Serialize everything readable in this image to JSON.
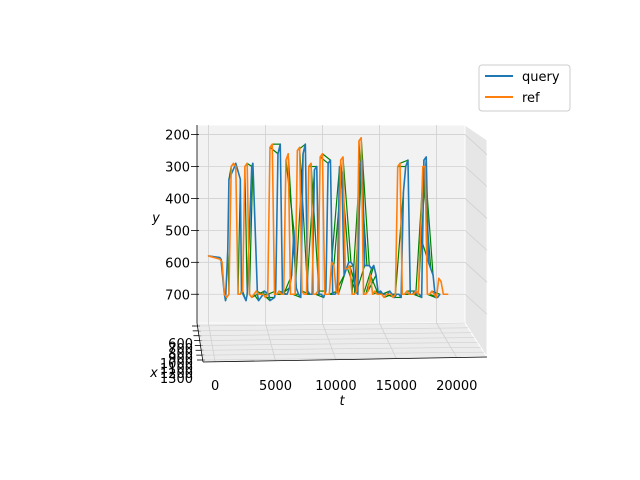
{
  "chart_data": {
    "type": "line",
    "projection": "3d",
    "title": "",
    "xlabel": "t",
    "ylabel": "y",
    "zlabel": "x",
    "x_ticks": [
      "0",
      "5000",
      "10000",
      "15000",
      "20000"
    ],
    "x_tick_values": [
      0,
      5000,
      10000,
      15000,
      20000
    ],
    "y_ticks": [
      "200",
      "300",
      "400",
      "500",
      "600",
      "700"
    ],
    "y_tick_values": [
      200,
      300,
      400,
      500,
      600,
      700
    ],
    "z_ticks": [
      "600",
      "700",
      "800",
      "900",
      "1000",
      "1100",
      "1200",
      "1300"
    ],
    "xlim": [
      -1000,
      22500
    ],
    "ylim": [
      170,
      790
    ],
    "grid": true,
    "legend_position": "upper-right",
    "series": [
      {
        "name": "query",
        "color": "#1f77b4",
        "x": [
          0,
          1000,
          1100,
          1400,
          1500,
          1700,
          1800,
          2300,
          2400,
          2800,
          2900,
          3300,
          3400,
          3800,
          3900,
          4300,
          4400,
          4800,
          4900,
          5300,
          5400,
          5800,
          5900,
          6100,
          6300,
          6500,
          6700,
          6900,
          7100,
          7300,
          7500,
          7700,
          7900,
          8100,
          8300,
          8500,
          8700,
          8900,
          9100,
          9300,
          9500,
          9700,
          9900,
          10100,
          10300,
          10500,
          10700,
          10900,
          11100,
          11300,
          11500,
          11700,
          11900,
          12100,
          12300,
          12500,
          12700,
          12900,
          13100,
          13300,
          13500,
          13700,
          13900,
          14100,
          14300,
          14500,
          14700,
          14900,
          15100,
          15300,
          15500,
          15700,
          15900,
          16100,
          16300,
          16500,
          16700,
          16900,
          17100,
          17300,
          17500,
          17700,
          17900,
          18100,
          18300,
          18500,
          18700,
          18900,
          19100,
          19300,
          19500,
          19700,
          19900,
          20100,
          20300
        ],
        "y": [
          580,
          585,
          590,
          700,
          720,
          560,
          340,
          300,
          290,
          340,
          690,
          720,
          700,
          300,
          290,
          700,
          720,
          700,
          690,
          700,
          720,
          710,
          690,
          260,
          230,
          700,
          700,
          700,
          680,
          640,
          500,
          680,
          700,
          710,
          260,
          230,
          690,
          700,
          700,
          310,
          300,
          700,
          700,
          710,
          690,
          290,
          280,
          700,
          700,
          690,
          300,
          320,
          640,
          620,
          600,
          600,
          610,
          690,
          700,
          290,
          280,
          610,
          610,
          610,
          620,
          610,
          640,
          700,
          690,
          700,
          700,
          700,
          690,
          700,
          710,
          700,
          700,
          710,
          380,
          300,
          280,
          700,
          700,
          690,
          700,
          700,
          710,
          280,
          270,
          600,
          620,
          640,
          710,
          710,
          700
        ]
      },
      {
        "name": "ref",
        "color": "#ff7f0e",
        "x": [
          0,
          1000,
          1200,
          1400,
          1600,
          1800,
          2000,
          2200,
          2400,
          2600,
          2800,
          3000,
          3200,
          3400,
          3600,
          3800,
          4000,
          4200,
          4400,
          4600,
          4800,
          5000,
          5200,
          5400,
          5600,
          5800,
          6000,
          6200,
          6400,
          6600,
          6800,
          7000,
          7200,
          7400,
          7600,
          7800,
          8000,
          8200,
          8400,
          8600,
          8800,
          9000,
          9200,
          9400,
          9600,
          9800,
          10000,
          10200,
          10400,
          10600,
          10800,
          11000,
          11200,
          11400,
          11600,
          11800,
          12000,
          12200,
          12400,
          12600,
          12800,
          13000,
          13200,
          13400,
          13600,
          13800,
          14000,
          14200,
          14400,
          14600,
          14800,
          15000,
          15200,
          15400,
          15600,
          15800,
          16000,
          16200,
          16400,
          16600,
          16800,
          17000,
          17200,
          17400,
          17600,
          17800,
          18000,
          18200,
          18400,
          18600,
          18800,
          19000,
          19200,
          19400,
          19600,
          19800,
          20000,
          20200,
          20400,
          20600,
          20800,
          21000
        ],
        "y": [
          580,
          590,
          600,
          700,
          710,
          700,
          300,
          290,
          300,
          700,
          700,
          690,
          300,
          290,
          700,
          710,
          700,
          690,
          700,
          700,
          700,
          710,
          700,
          240,
          230,
          700,
          700,
          690,
          700,
          700,
          280,
          260,
          700,
          700,
          700,
          250,
          240,
          690,
          700,
          700,
          300,
          290,
          700,
          700,
          690,
          270,
          260,
          700,
          700,
          700,
          600,
          610,
          690,
          700,
          280,
          270,
          620,
          620,
          610,
          700,
          700,
          690,
          220,
          210,
          700,
          700,
          690,
          640,
          700,
          690,
          700,
          700,
          700,
          710,
          700,
          700,
          700,
          710,
          700,
          300,
          290,
          700,
          700,
          690,
          700,
          700,
          700,
          690,
          700,
          520,
          300,
          300,
          700,
          700,
          690,
          700,
          710,
          650,
          660,
          700,
          700,
          700
        ]
      }
    ],
    "alignment_series": {
      "color": "#008000",
      "label_in_legend": false
    }
  },
  "legend": {
    "items": [
      {
        "label": "query",
        "color": "#1f77b4"
      },
      {
        "label": "ref",
        "color": "#ff7f0e"
      }
    ]
  }
}
